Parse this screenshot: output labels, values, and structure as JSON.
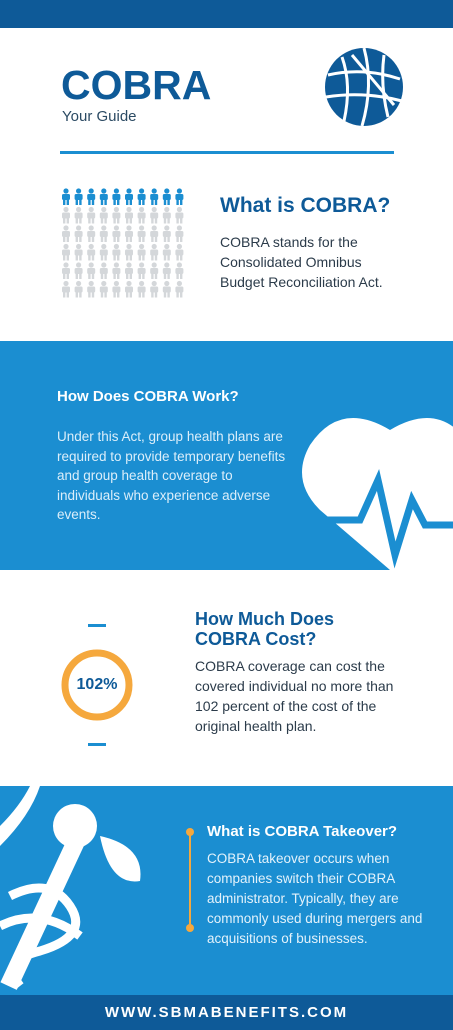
{
  "header": {
    "title": "COBRA",
    "subtitle": "Your Guide"
  },
  "sections": [
    {
      "heading": "What is COBRA?",
      "body": "COBRA stands for the Consolidated Omnibus Budget Reconciliation Act."
    },
    {
      "heading": "How Does COBRA Work?",
      "body": "Under this Act, group health plans are required to provide temporary benefits and group health coverage to individuals who experience adverse events."
    },
    {
      "heading": "How Much Does COBRA Cost?",
      "badge": "102%",
      "body": "COBRA coverage can cost the covered individual no more than 102 percent of the cost of the original health plan."
    },
    {
      "heading": "What is COBRA Takeover?",
      "body": "COBRA takeover occurs when companies switch their COBRA administrator. Typically, they are commonly used during mergers and acquisitions of businesses."
    }
  ],
  "footer": {
    "website": "WWW.SBMABENEFITS.COM"
  }
}
